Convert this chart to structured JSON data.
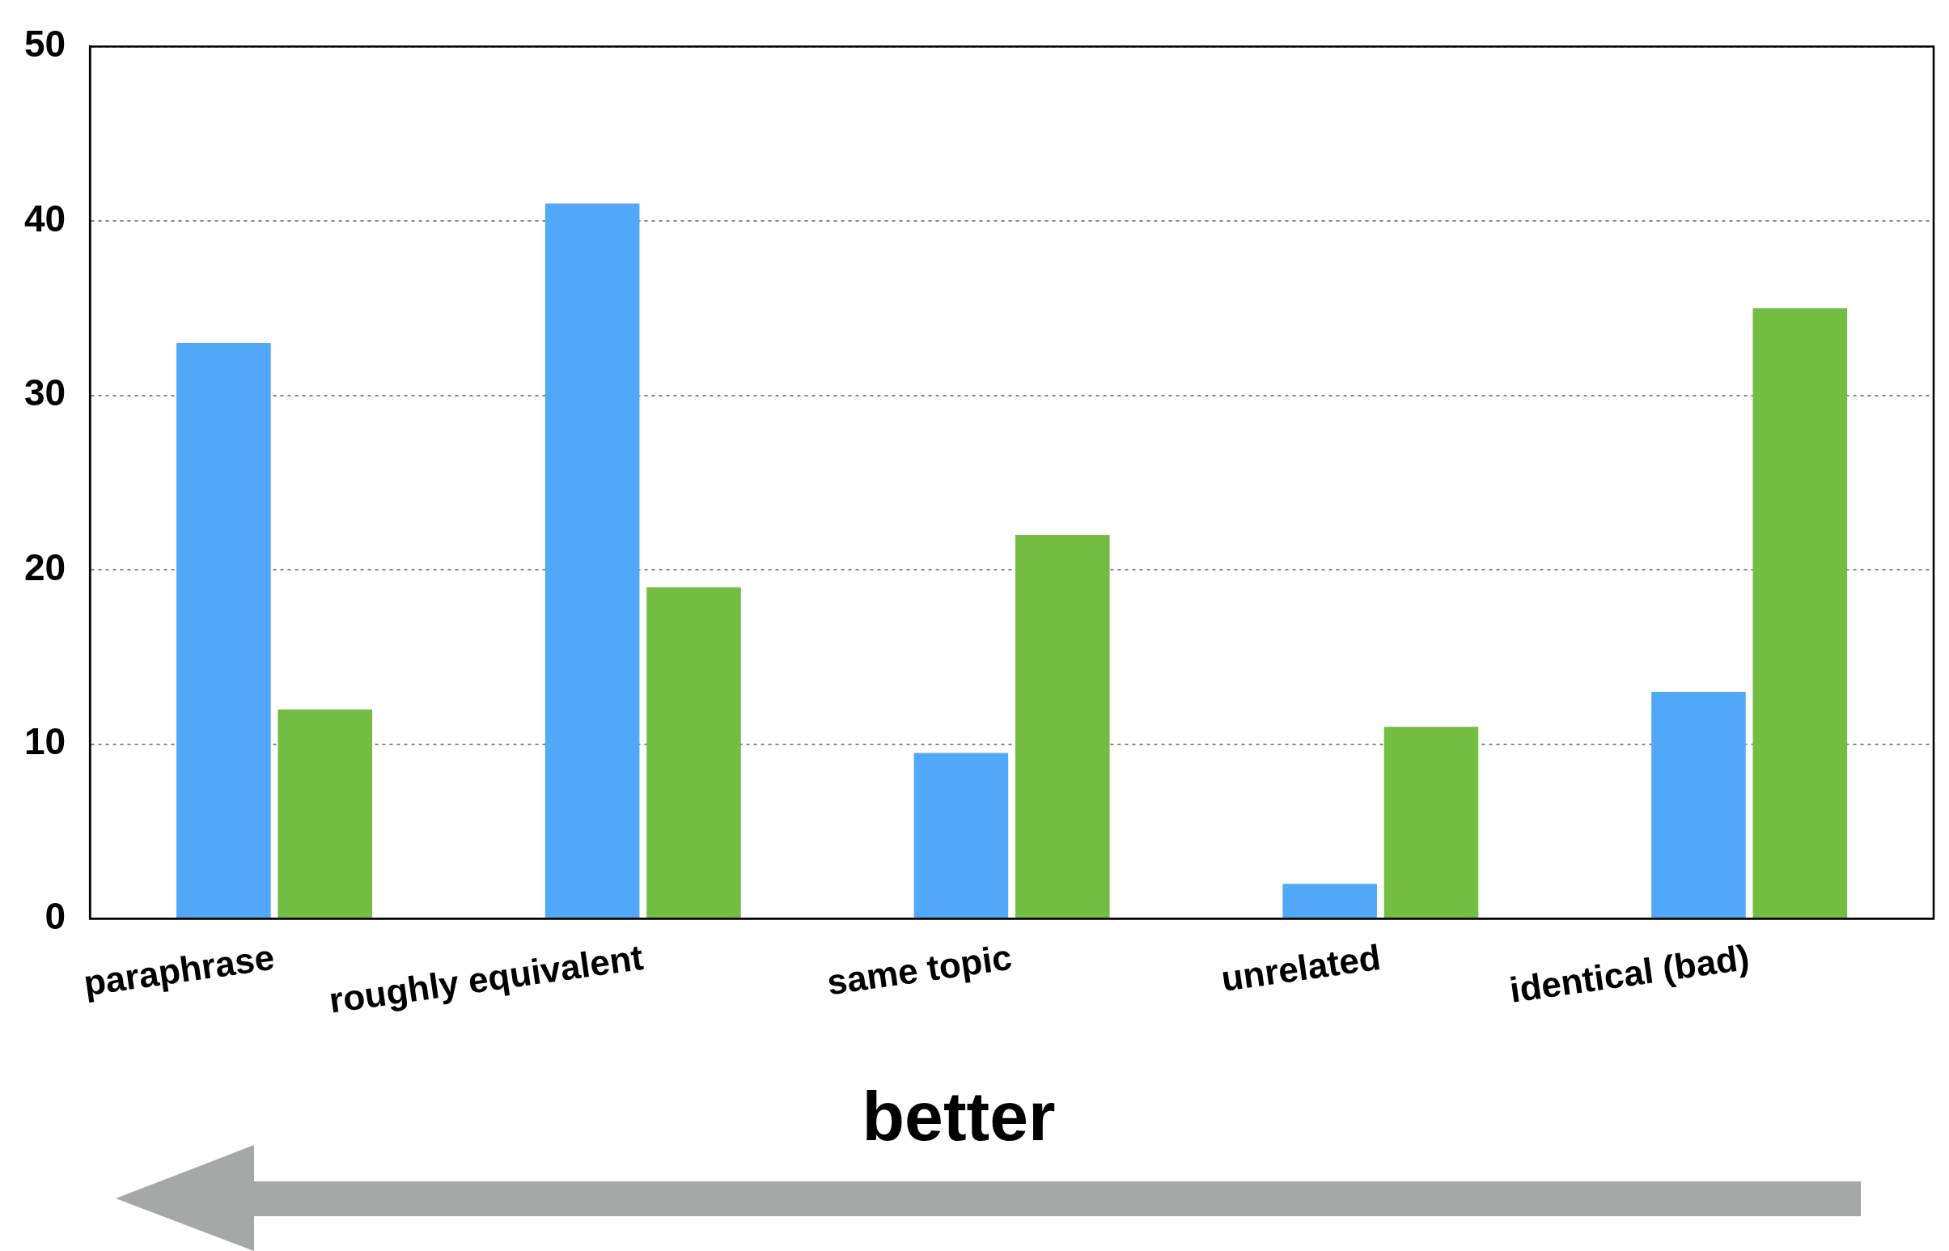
{
  "chart_data": {
    "type": "bar",
    "categories": [
      "paraphrase",
      "roughly equivalent",
      "same topic",
      "unrelated",
      "identical (bad)"
    ],
    "series": [
      {
        "color": "#52a8f8",
        "values": [
          33,
          41,
          9.5,
          2,
          13
        ]
      },
      {
        "color": "#72bd42",
        "values": [
          12,
          19,
          22,
          11,
          35
        ]
      }
    ],
    "ylim": [
      0,
      50
    ],
    "yticks": [
      0,
      10,
      20,
      30,
      40,
      50
    ],
    "grid": "y",
    "legend": false,
    "annotations": [
      "better"
    ]
  }
}
